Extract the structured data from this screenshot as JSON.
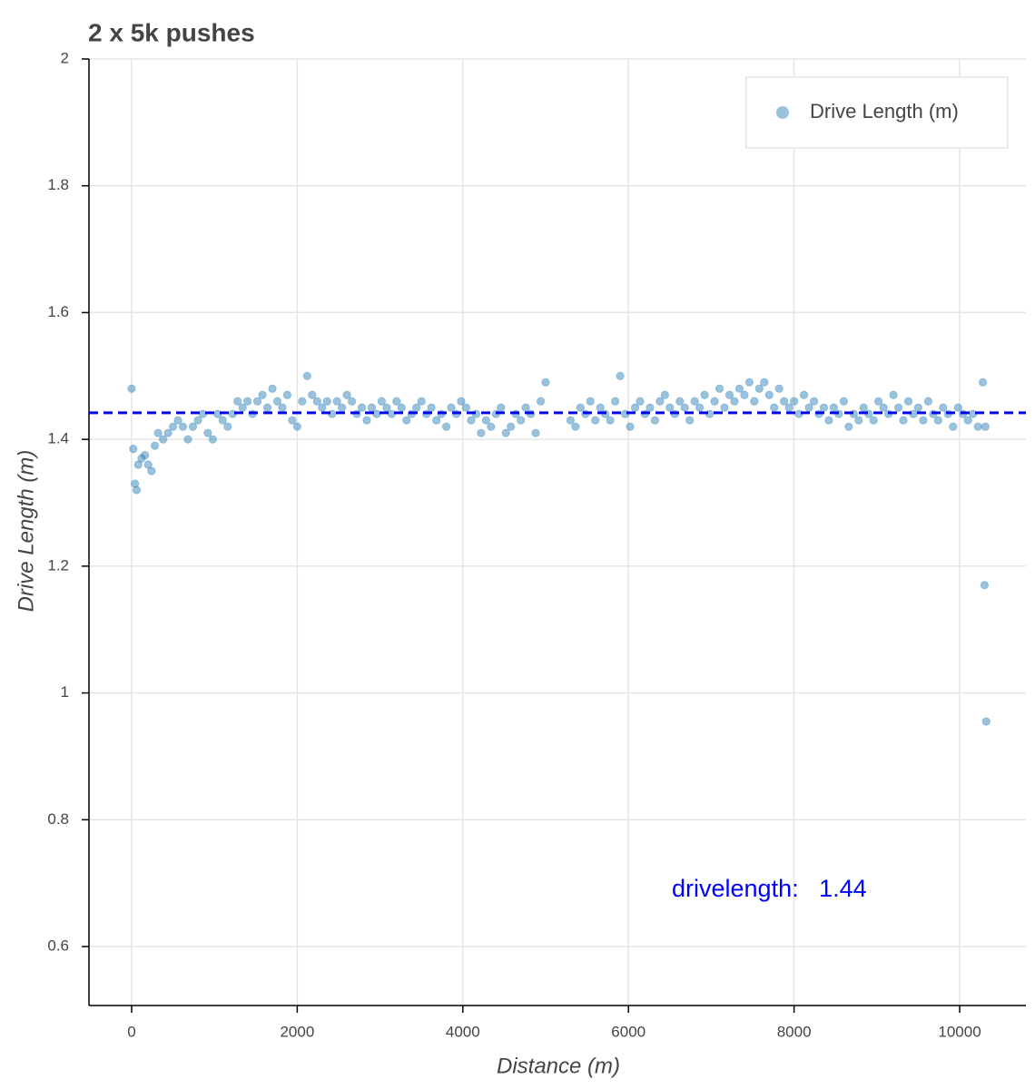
{
  "chart_data": {
    "type": "scatter",
    "title": "2 x 5k pushes",
    "x_label": "Distance (m)",
    "y_label": "Drive Length (m)",
    "xlim": [
      -515,
      10800
    ],
    "ylim": [
      0.507,
      2
    ],
    "xticks": [
      0,
      2000,
      4000,
      6000,
      8000,
      10000
    ],
    "yticks": [
      0.6,
      0.8,
      1,
      1.2,
      1.4,
      1.6,
      1.8,
      2
    ],
    "grid": true,
    "legend": "top-right",
    "hline": 1.442,
    "hline_color": "#0000ff",
    "annotation": "drivelength:   1.44",
    "x": [
      0,
      20,
      40,
      60,
      80,
      120,
      160,
      200,
      240,
      280,
      320,
      380,
      440,
      500,
      560,
      620,
      680,
      740,
      800,
      860,
      920,
      980,
      1040,
      1100,
      1160,
      1220,
      1280,
      1340,
      1400,
      1460,
      1520,
      1580,
      1640,
      1700,
      1760,
      1820,
      1880,
      1940,
      2000,
      2060,
      2120,
      2180,
      2240,
      2300,
      2360,
      2420,
      2480,
      2540,
      2600,
      2660,
      2720,
      2780,
      2840,
      2900,
      2960,
      3020,
      3080,
      3140,
      3200,
      3260,
      3320,
      3380,
      3440,
      3500,
      3560,
      3620,
      3680,
      3740,
      3800,
      3860,
      3920,
      3980,
      4040,
      4100,
      4160,
      4220,
      4280,
      4340,
      4400,
      4460,
      4520,
      4580,
      4640,
      4700,
      4760,
      4820,
      4880,
      4940,
      5000,
      5300,
      5360,
      5420,
      5480,
      5540,
      5600,
      5660,
      5720,
      5780,
      5840,
      5900,
      5960,
      6020,
      6080,
      6140,
      6200,
      6260,
      6320,
      6380,
      6440,
      6500,
      6560,
      6620,
      6680,
      6740,
      6800,
      6860,
      6920,
      6980,
      7040,
      7100,
      7160,
      7220,
      7280,
      7340,
      7400,
      7460,
      7520,
      7580,
      7640,
      7700,
      7760,
      7820,
      7880,
      7940,
      8000,
      8060,
      8120,
      8180,
      8240,
      8300,
      8360,
      8420,
      8480,
      8540,
      8600,
      8660,
      8720,
      8780,
      8840,
      8900,
      8960,
      9020,
      9080,
      9140,
      9200,
      9260,
      9320,
      9380,
      9440,
      9500,
      9560,
      9620,
      9680,
      9740,
      9800,
      9860,
      9920,
      9980,
      10040,
      10100,
      10160,
      10220,
      10280,
      10300,
      10310,
      10320
    ],
    "series": [
      {
        "name": "Drive Length (m)",
        "color": "#1f77b4",
        "values": [
          1.48,
          1.385,
          1.33,
          1.32,
          1.36,
          1.37,
          1.375,
          1.36,
          1.35,
          1.39,
          1.41,
          1.4,
          1.41,
          1.42,
          1.43,
          1.42,
          1.4,
          1.42,
          1.43,
          1.44,
          1.41,
          1.4,
          1.44,
          1.43,
          1.42,
          1.44,
          1.46,
          1.45,
          1.46,
          1.44,
          1.46,
          1.47,
          1.45,
          1.48,
          1.46,
          1.45,
          1.47,
          1.43,
          1.42,
          1.46,
          1.5,
          1.47,
          1.46,
          1.45,
          1.46,
          1.44,
          1.46,
          1.45,
          1.47,
          1.46,
          1.44,
          1.45,
          1.43,
          1.45,
          1.44,
          1.46,
          1.45,
          1.44,
          1.46,
          1.45,
          1.43,
          1.44,
          1.45,
          1.46,
          1.44,
          1.45,
          1.43,
          1.44,
          1.42,
          1.45,
          1.44,
          1.46,
          1.45,
          1.43,
          1.44,
          1.41,
          1.43,
          1.42,
          1.44,
          1.45,
          1.41,
          1.42,
          1.44,
          1.43,
          1.45,
          1.44,
          1.41,
          1.46,
          1.49,
          1.43,
          1.42,
          1.45,
          1.44,
          1.46,
          1.43,
          1.45,
          1.44,
          1.43,
          1.46,
          1.5,
          1.44,
          1.42,
          1.45,
          1.46,
          1.44,
          1.45,
          1.43,
          1.46,
          1.47,
          1.45,
          1.44,
          1.46,
          1.45,
          1.43,
          1.46,
          1.45,
          1.47,
          1.44,
          1.46,
          1.48,
          1.45,
          1.47,
          1.46,
          1.48,
          1.47,
          1.49,
          1.46,
          1.48,
          1.49,
          1.47,
          1.45,
          1.48,
          1.46,
          1.45,
          1.46,
          1.44,
          1.47,
          1.45,
          1.46,
          1.44,
          1.45,
          1.43,
          1.45,
          1.44,
          1.46,
          1.42,
          1.44,
          1.43,
          1.45,
          1.44,
          1.43,
          1.46,
          1.45,
          1.44,
          1.47,
          1.45,
          1.43,
          1.46,
          1.44,
          1.45,
          1.43,
          1.46,
          1.44,
          1.43,
          1.45,
          1.44,
          1.42,
          1.45,
          1.44,
          1.43,
          1.44,
          1.42,
          1.49,
          1.17,
          1.42,
          0.955
        ]
      }
    ]
  }
}
